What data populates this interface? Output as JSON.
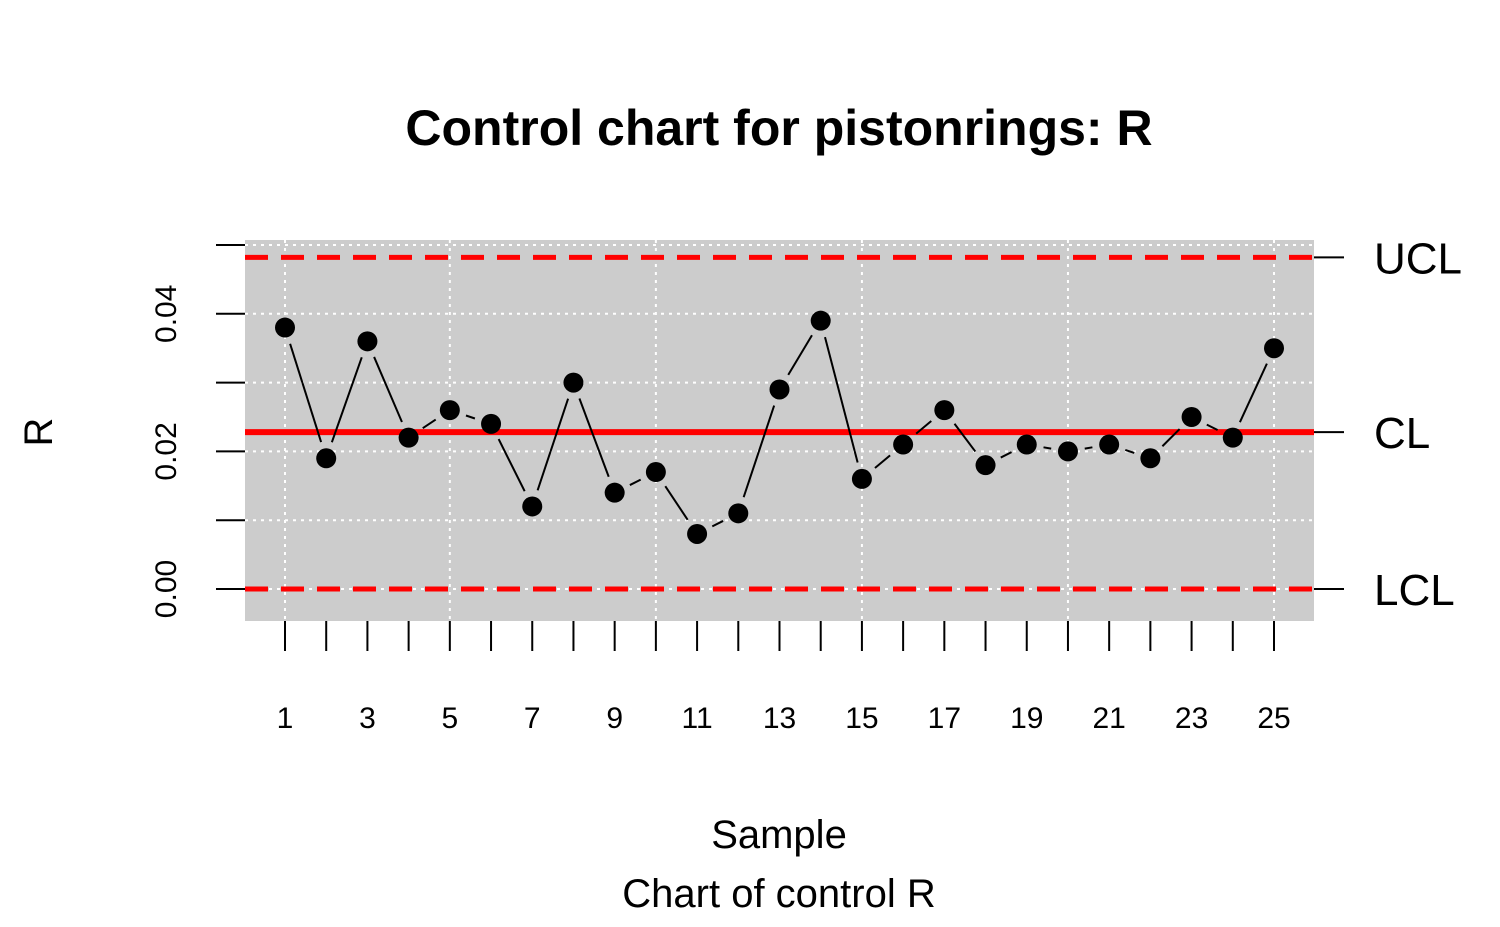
{
  "chart_data": {
    "type": "line",
    "title": "Control chart for pistonrings: R",
    "xlabel": "Sample",
    "subtitle": "Chart of control R",
    "ylabel": "R",
    "x": [
      1,
      2,
      3,
      4,
      5,
      6,
      7,
      8,
      9,
      10,
      11,
      12,
      13,
      14,
      15,
      16,
      17,
      18,
      19,
      20,
      21,
      22,
      23,
      24,
      25
    ],
    "x_tick_labels": [
      "1",
      "3",
      "5",
      "7",
      "9",
      "11",
      "13",
      "15",
      "17",
      "19",
      "21",
      "23",
      "25"
    ],
    "series": [
      {
        "values": [
          0.038,
          0.019,
          0.036,
          0.022,
          0.026,
          0.024,
          0.012,
          0.03,
          0.014,
          0.017,
          0.008,
          0.011,
          0.029,
          0.039,
          0.016,
          0.021,
          0.026,
          0.018,
          0.021,
          0.02,
          0.021,
          0.019,
          0.025,
          0.022,
          0.035
        ]
      }
    ],
    "y_ticks": [
      0.0,
      0.01,
      0.02,
      0.03,
      0.04,
      0.05
    ],
    "y_tick_labels": [
      "0.00",
      "0.02",
      "0.04"
    ],
    "ylim": [
      0.0,
      0.05
    ],
    "control_limits": {
      "UCL": {
        "label": "UCL",
        "value": 0.0482
      },
      "CL": {
        "label": "CL",
        "value": 0.0228
      },
      "LCL": {
        "label": "LCL",
        "value": 0.0
      }
    },
    "grid": true,
    "colors": {
      "panel": "#cccccc",
      "grid": "#ffffff",
      "limits": "#ff0000",
      "points": "#000000"
    }
  }
}
